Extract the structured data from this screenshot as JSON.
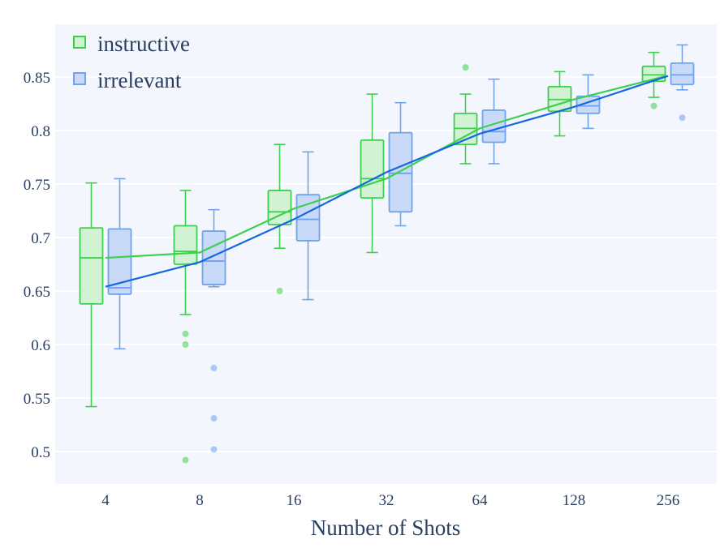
{
  "chart_data": {
    "type": "box",
    "xlabel": "Number of Shots",
    "ylabel": "",
    "categories": [
      "4",
      "8",
      "16",
      "32",
      "64",
      "128",
      "256"
    ],
    "ylim": [
      0.47,
      0.89
    ],
    "yticks": [
      "0.5",
      "0.55",
      "0.6",
      "0.65",
      "0.7",
      "0.75",
      "0.8",
      "0.85"
    ],
    "grid": true,
    "legend_position": "top-left",
    "series": [
      {
        "name": "instructive",
        "color": "#3fcf4f",
        "fill": "#d2f2d4",
        "boxes": [
          {
            "min": 0.542,
            "q1": 0.638,
            "median": 0.681,
            "q3": 0.709,
            "max": 0.751,
            "outliers": []
          },
          {
            "min": 0.628,
            "q1": 0.675,
            "median": 0.687,
            "q3": 0.711,
            "max": 0.744,
            "outliers": [
              0.61,
              0.6,
              0.492
            ]
          },
          {
            "min": 0.69,
            "q1": 0.712,
            "median": 0.724,
            "q3": 0.744,
            "max": 0.787,
            "outliers": [
              0.65
            ]
          },
          {
            "min": 0.686,
            "q1": 0.737,
            "median": 0.755,
            "q3": 0.791,
            "max": 0.834,
            "outliers": []
          },
          {
            "min": 0.769,
            "q1": 0.787,
            "median": 0.802,
            "q3": 0.816,
            "max": 0.834,
            "outliers": [
              0.859
            ]
          },
          {
            "min": 0.795,
            "q1": 0.818,
            "median": 0.829,
            "q3": 0.841,
            "max": 0.855,
            "outliers": []
          },
          {
            "min": 0.831,
            "q1": 0.846,
            "median": 0.852,
            "q3": 0.86,
            "max": 0.873,
            "outliers": [
              0.823
            ]
          }
        ],
        "trend": [
          0.681,
          0.686,
          0.727,
          0.755,
          0.802,
          0.829,
          0.851
        ]
      },
      {
        "name": "irrelevant",
        "color": "#6fa3ee",
        "fill": "#c9daf8",
        "line_color": "#1668e0",
        "boxes": [
          {
            "min": 0.596,
            "q1": 0.647,
            "median": 0.653,
            "q3": 0.708,
            "max": 0.755,
            "outliers": []
          },
          {
            "min": 0.654,
            "q1": 0.656,
            "median": 0.678,
            "q3": 0.706,
            "max": 0.726,
            "outliers": [
              0.578,
              0.531,
              0.502
            ]
          },
          {
            "min": 0.642,
            "q1": 0.697,
            "median": 0.717,
            "q3": 0.74,
            "max": 0.78,
            "outliers": []
          },
          {
            "min": 0.711,
            "q1": 0.724,
            "median": 0.76,
            "q3": 0.798,
            "max": 0.826,
            "outliers": []
          },
          {
            "min": 0.769,
            "q1": 0.789,
            "median": 0.799,
            "q3": 0.819,
            "max": 0.848,
            "outliers": []
          },
          {
            "min": 0.802,
            "q1": 0.816,
            "median": 0.823,
            "q3": 0.832,
            "max": 0.852,
            "outliers": []
          },
          {
            "min": 0.838,
            "q1": 0.843,
            "median": 0.852,
            "q3": 0.863,
            "max": 0.88,
            "outliers": [
              0.812
            ]
          }
        ],
        "trend": [
          0.654,
          0.677,
          0.717,
          0.761,
          0.797,
          0.822,
          0.851
        ]
      }
    ]
  }
}
